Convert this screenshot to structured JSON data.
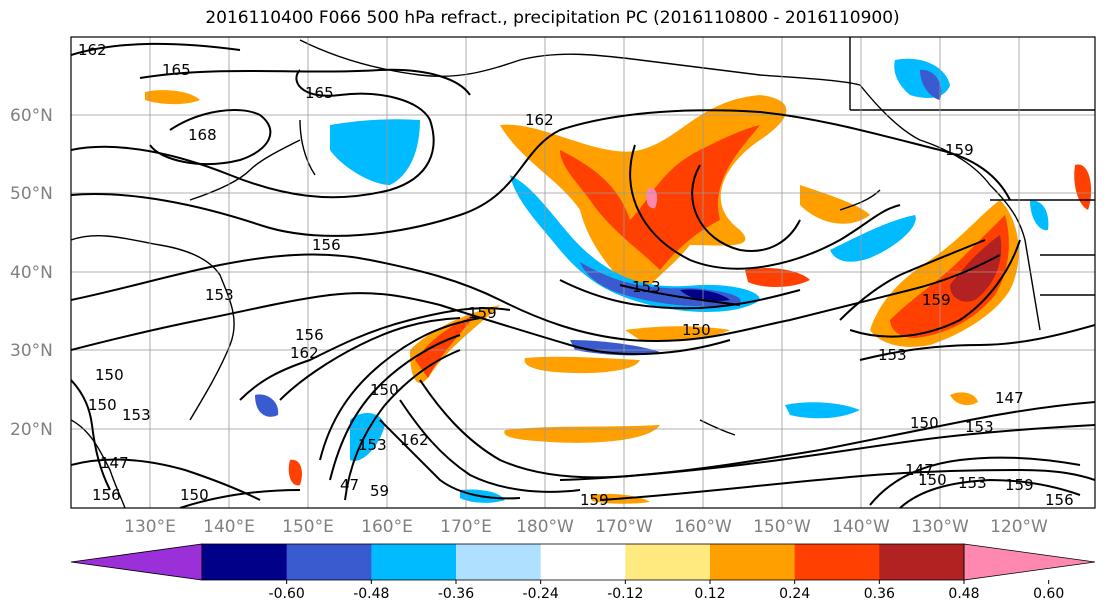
{
  "title": "2016110400 F066 500 hPa refract., precipitation PC (2016110800 - 2016110900)",
  "lat_labels": [
    "60°N",
    "50°N",
    "40°N",
    "30°N",
    "20°N"
  ],
  "lon_labels": [
    "130°E",
    "140°E",
    "150°E",
    "160°E",
    "170°E",
    "180°W",
    "170°W",
    "160°W",
    "150°W",
    "140°W",
    "130°W",
    "120°W"
  ],
  "contour_labels": [
    "162",
    "165",
    "165",
    "168",
    "162",
    "159",
    "156",
    "153",
    "156",
    "162",
    "159",
    "153",
    "150",
    "153",
    "159",
    "150",
    "150",
    "153",
    "150",
    "153",
    "147",
    "147",
    "150",
    "150",
    "47",
    "59",
    "153",
    "159",
    "147",
    "159",
    "153",
    "156",
    "150",
    "162",
    "156"
  ],
  "colorbar": {
    "colors": [
      "#9b30d9",
      "#000088",
      "#3a5bd0",
      "#00bbff",
      "#b0e0ff",
      "#ffffff",
      "#ffea80",
      "#ffa000",
      "#ff4000",
      "#b22222",
      "#ff88b0"
    ],
    "tick_labels": [
      "-0.60",
      "-0.48",
      "-0.36",
      "-0.24",
      "-0.12",
      "0.12",
      "0.24",
      "0.36",
      "0.48",
      "0.60"
    ]
  },
  "chart_data": {
    "type": "heatmap",
    "title": "2016110400 F066 500 hPa refract., precipitation PC (2016110800 - 2016110900)",
    "lat_ticks": [
      60,
      50,
      40,
      30,
      20
    ],
    "lon_ticks": [
      "130°E",
      "140°E",
      "150°E",
      "160°E",
      "170°E",
      "180°W",
      "170°W",
      "160°W",
      "150°W",
      "140°W",
      "130°W",
      "120°W"
    ],
    "color_levels": [
      -0.6,
      -0.48,
      -0.36,
      -0.24,
      -0.12,
      0.12,
      0.24,
      0.36,
      0.48,
      0.6
    ],
    "contour_levels": [
      147,
      150,
      153,
      156,
      159,
      162,
      165,
      168
    ],
    "grid": true
  }
}
